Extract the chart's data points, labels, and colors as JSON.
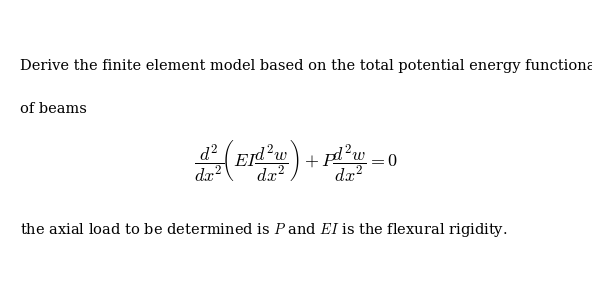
{
  "background_color": "#ffffff",
  "text_color": "#000000",
  "title_line1": "Derive the finite element model based on the total potential energy functional for the buckling",
  "title_line2": "of beams",
  "formula": "\\frac{d^2}{dx^2}\\left(EI\\frac{d^2w}{dx^2}\\right)+P\\frac{d^2w}{dx^2}=0",
  "footnote_text": "the axial load to be determined is $P$ and $EI$ is the flexural rigidity.",
  "text_fontsize": 10.5,
  "formula_fontsize": 13,
  "footnote_fontsize": 10.5,
  "figwidth": 5.92,
  "figheight": 2.96,
  "dpi": 100
}
